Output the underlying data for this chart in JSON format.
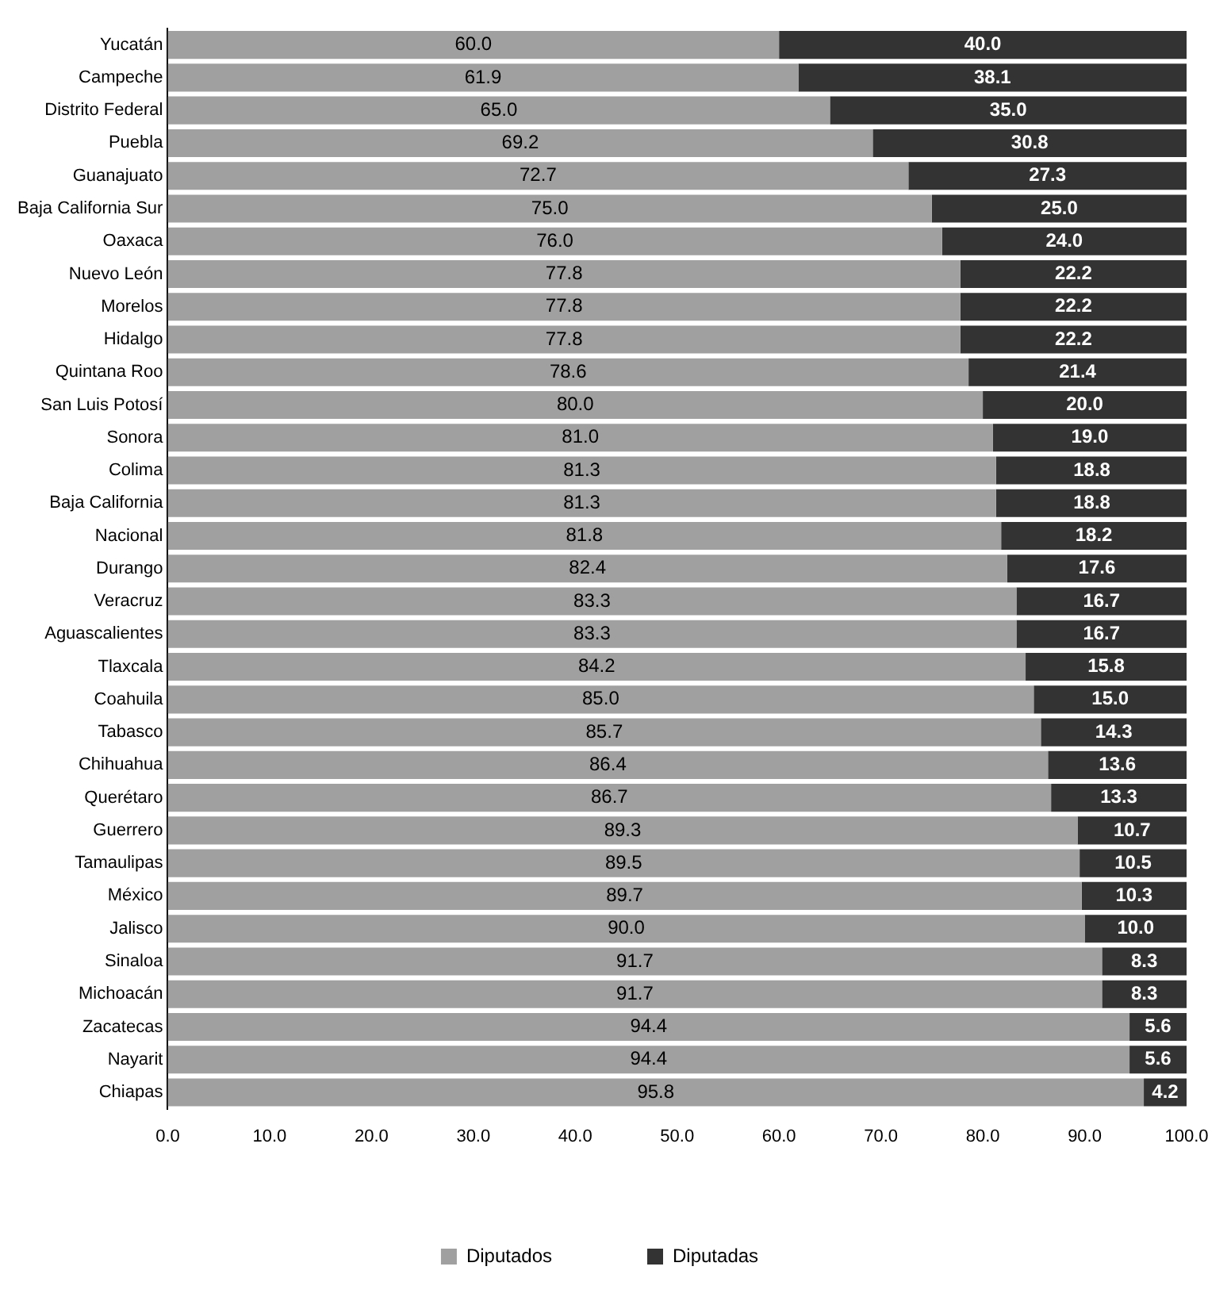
{
  "chart_data": {
    "type": "bar",
    "orientation": "horizontal",
    "stacked": true,
    "legend": "bottom",
    "grid": false,
    "categories": [
      "Yucatán",
      "Campeche",
      "Distrito Federal",
      "Puebla",
      "Guanajuato",
      "Baja California Sur",
      "Oaxaca",
      "Nuevo León",
      "Morelos",
      "Hidalgo",
      "Quintana Roo",
      "San Luis Potosí",
      "Sonora",
      "Colima",
      "Baja California",
      "Nacional",
      "Durango",
      "Veracruz",
      "Aguascalientes",
      "Tlaxcala",
      "Coahuila",
      "Tabasco",
      "Chihuahua",
      "Querétaro",
      "Guerrero",
      "Tamaulipas",
      "México",
      "Jalisco",
      "Sinaloa",
      "Michoacán",
      "Zacatecas",
      "Nayarit",
      "Chiapas"
    ],
    "xlim": [
      0,
      100
    ],
    "xticks": [
      {
        "value": 0,
        "label": "0.0"
      },
      {
        "value": 10,
        "label": "10.0"
      },
      {
        "value": 20,
        "label": "20.0"
      },
      {
        "value": 30,
        "label": "30.0"
      },
      {
        "value": 40,
        "label": "40.0"
      },
      {
        "value": 50,
        "label": "50.0"
      },
      {
        "value": 60,
        "label": "60.0"
      },
      {
        "value": 70,
        "label": "70.0"
      },
      {
        "value": 80,
        "label": "80.0"
      },
      {
        "value": 90,
        "label": "90.0"
      },
      {
        "value": 100,
        "label": "100.0"
      }
    ],
    "series": [
      {
        "name": "Diputados",
        "color": "#a0a0a0",
        "values": [
          60,
          61.9,
          65,
          69.2,
          72.7,
          75,
          76,
          77.8,
          77.8,
          77.8,
          78.6,
          80,
          81,
          81.3,
          81.3,
          81.8,
          82.4,
          83.3,
          83.3,
          84.2,
          85,
          85.7,
          86.4,
          86.7,
          89.3,
          89.5,
          89.7,
          90,
          91.7,
          91.7,
          94.4,
          94.4,
          95.8
        ],
        "value_labels": [
          "60.0",
          "61.9",
          "65.0",
          "69.2",
          "72.7",
          "75.0",
          "76.0",
          "77.8",
          "77.8",
          "77.8",
          "78.6",
          "80.0",
          "81.0",
          "81.3",
          "81.3",
          "81.8",
          "82.4",
          "83.3",
          "83.3",
          "84.2",
          "85.0",
          "85.7",
          "86.4",
          "86.7",
          "89.3",
          "89.5",
          "89.7",
          "90.0",
          "91.7",
          "91.7",
          "94.4",
          "94.4",
          "95.8"
        ]
      },
      {
        "name": "Diputadas",
        "color": "#333333",
        "values": [
          40,
          38.1,
          35,
          30.8,
          27.3,
          25,
          24,
          22.2,
          22.2,
          22.2,
          21.4,
          20,
          19,
          18.8,
          18.8,
          18.2,
          17.6,
          16.7,
          16.7,
          15.8,
          15,
          14.3,
          13.6,
          13.3,
          10.7,
          10.5,
          10.3,
          10,
          8.3,
          8.3,
          5.6,
          5.6,
          4.2
        ],
        "value_labels": [
          "40.0",
          "38.1",
          "35.0",
          "30.8",
          "27.3",
          "25.0",
          "24.0",
          "22.2",
          "22.2",
          "22.2",
          "21.4",
          "20.0",
          "19.0",
          "18.8",
          "18.8",
          "18.2",
          "17.6",
          "16.7",
          "16.7",
          "15.8",
          "15.0",
          "14.3",
          "13.6",
          "13.3",
          "10.7",
          "10.5",
          "10.3",
          "10.0",
          "8.3",
          "8.3",
          "5.6",
          "5.6",
          "4.2"
        ]
      }
    ]
  }
}
